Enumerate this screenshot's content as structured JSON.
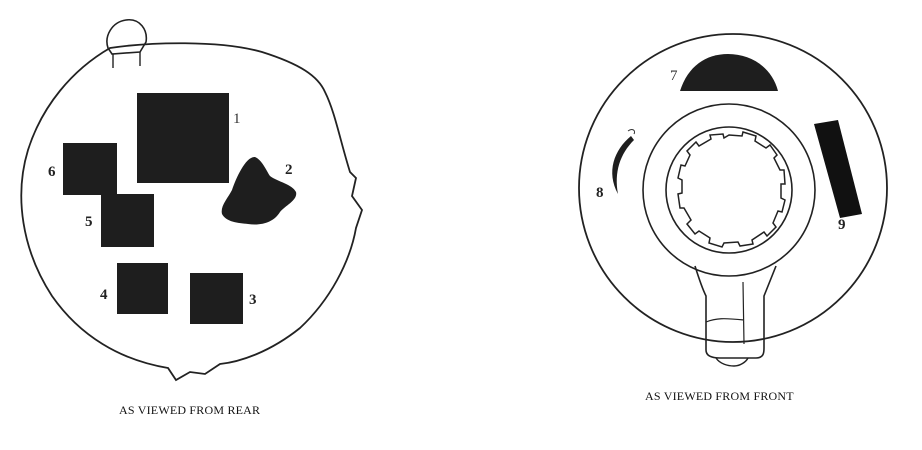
{
  "rear_view": {
    "caption": "AS VIEWED FROM REAR",
    "regions": [
      {
        "id": "1",
        "label": "1"
      },
      {
        "id": "2",
        "label": "2"
      },
      {
        "id": "3",
        "label": "3"
      },
      {
        "id": "4",
        "label": "4"
      },
      {
        "id": "5",
        "label": "5"
      },
      {
        "id": "6",
        "label": "6"
      }
    ]
  },
  "front_view": {
    "caption": "AS VIEWED FROM FRONT",
    "regions": [
      {
        "id": "7",
        "label": "7"
      },
      {
        "id": "8",
        "label": "8"
      },
      {
        "id": "9",
        "label": "9"
      }
    ]
  },
  "colors": {
    "ink": "#1c1c1c",
    "line": "#222222",
    "paper": "#ffffff"
  }
}
